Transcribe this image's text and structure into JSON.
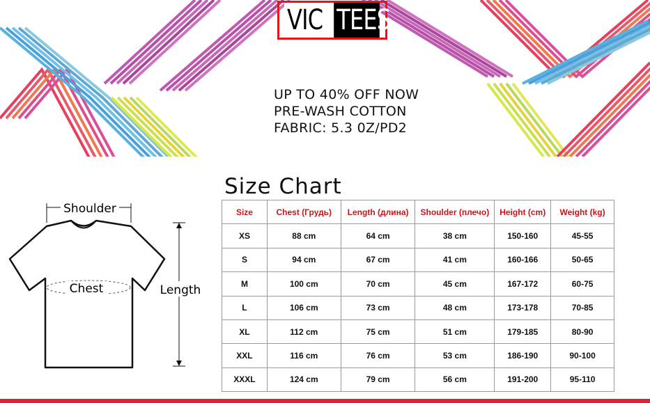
{
  "brand": {
    "logo_left": "VIC",
    "logo_right": "TEES"
  },
  "promo": [
    "UP TO 40% OFF NOW",
    "PRE-WASH COTTON",
    "FABRIC: 5.3 0Z/PD2"
  ],
  "size_chart": {
    "title": "Size Chart",
    "headers": [
      "Size",
      "Chest  (Грудь)",
      "Length (длина)",
      "Shoulder (плечо)",
      "Height (cm)",
      "Weight (kg)"
    ],
    "rows": [
      [
        "XS",
        "88 cm",
        "64 cm",
        "38 cm",
        "150-160",
        "45-55"
      ],
      [
        "S",
        "94 cm",
        "67 cm",
        "41 cm",
        "160-166",
        "50-65"
      ],
      [
        "M",
        "100 cm",
        "70 cm",
        "45 cm",
        "167-172",
        "60-75"
      ],
      [
        "L",
        "106 cm",
        "73 cm",
        "48 cm",
        "173-178",
        "70-85"
      ],
      [
        "XL",
        "112 cm",
        "75 cm",
        "51 cm",
        "179-185",
        "80-90"
      ],
      [
        "XXL",
        "116 cm",
        "76 cm",
        "53 cm",
        "186-190",
        "90-100"
      ],
      [
        "XXXL",
        "124 cm",
        "79 cm",
        "56 cm",
        "191-200",
        "95-110"
      ]
    ]
  },
  "diagram": {
    "shoulder": "Shoulder",
    "chest": "Chest",
    "length": "Length"
  },
  "colors": {
    "header_text": "#c8141b",
    "logo_border": "#e8141b",
    "bottom_line": "#d8243a"
  }
}
